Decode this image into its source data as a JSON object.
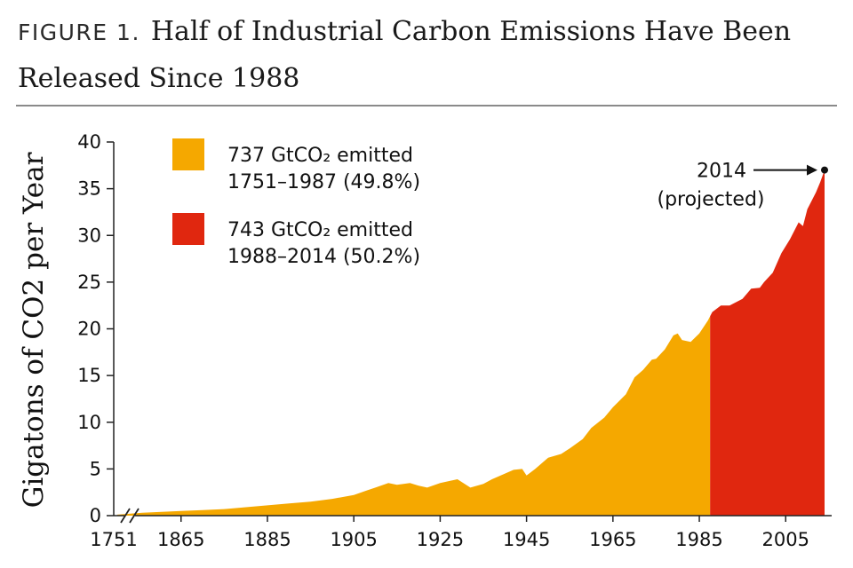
{
  "header": {
    "figure_label": "FIGURE 1.",
    "title": "Half of Industrial Carbon Emissions Have Been Released Since 1988"
  },
  "chart_data": {
    "type": "area",
    "ylabel": "Gigatons of CO2 per Year",
    "ylim": [
      0,
      40
    ],
    "y_ticks": [
      0,
      5,
      10,
      15,
      20,
      25,
      30,
      35,
      40
    ],
    "x_axis_broken": true,
    "x_ticks": [
      "1751",
      "1865",
      "1885",
      "1905",
      "1925",
      "1945",
      "1965",
      "1985",
      "2005"
    ],
    "x_tick_values": [
      1751,
      1865,
      1885,
      1905,
      1925,
      1945,
      1965,
      1985,
      2005
    ],
    "break_start_year": 1751,
    "break_end_year": 1856,
    "xlim": [
      1856,
      2014
    ],
    "series": [
      {
        "name": "737 GtCO₂ emitted 1751–1987 (49.8%)",
        "color": "#F5A800",
        "range": [
          1751,
          1987
        ]
      },
      {
        "name": "743 GtCO₂ emitted 1988–2014 (50.2%)",
        "color": "#E0270F",
        "range": [
          1988,
          2014
        ]
      }
    ],
    "x": [
      1751,
      1856,
      1865,
      1870,
      1875,
      1880,
      1885,
      1890,
      1895,
      1900,
      1905,
      1908,
      1910,
      1913,
      1915,
      1918,
      1920,
      1922,
      1925,
      1929,
      1932,
      1935,
      1937,
      1940,
      1942,
      1944,
      1945,
      1947,
      1950,
      1953,
      1955,
      1958,
      1960,
      1963,
      1965,
      1968,
      1970,
      1972,
      1974,
      1975,
      1977,
      1979,
      1980,
      1981,
      1983,
      1985,
      1987,
      1988,
      1990,
      1992,
      1995,
      1997,
      1999,
      2000,
      2002,
      2004,
      2006,
      2008,
      2009,
      2010,
      2012,
      2013,
      2014
    ],
    "y": [
      0.1,
      0.3,
      0.5,
      0.6,
      0.7,
      0.9,
      1.1,
      1.3,
      1.5,
      1.8,
      2.2,
      2.7,
      3.0,
      3.5,
      3.3,
      3.5,
      3.2,
      3.0,
      3.5,
      3.9,
      3.0,
      3.4,
      3.9,
      4.5,
      4.9,
      5.0,
      4.3,
      5.0,
      6.2,
      6.6,
      7.2,
      8.2,
      9.4,
      10.5,
      11.6,
      13.0,
      14.8,
      15.6,
      16.7,
      16.8,
      17.8,
      19.3,
      19.5,
      18.8,
      18.6,
      19.5,
      20.9,
      21.8,
      22.5,
      22.5,
      23.2,
      24.3,
      24.4,
      25.0,
      26.0,
      28.1,
      29.6,
      31.4,
      31.0,
      32.8,
      34.6,
      35.7,
      37.0
    ],
    "legend_position": "top-left",
    "annotation": {
      "year": "2014",
      "note": "(projected)",
      "value": 37.0
    }
  }
}
